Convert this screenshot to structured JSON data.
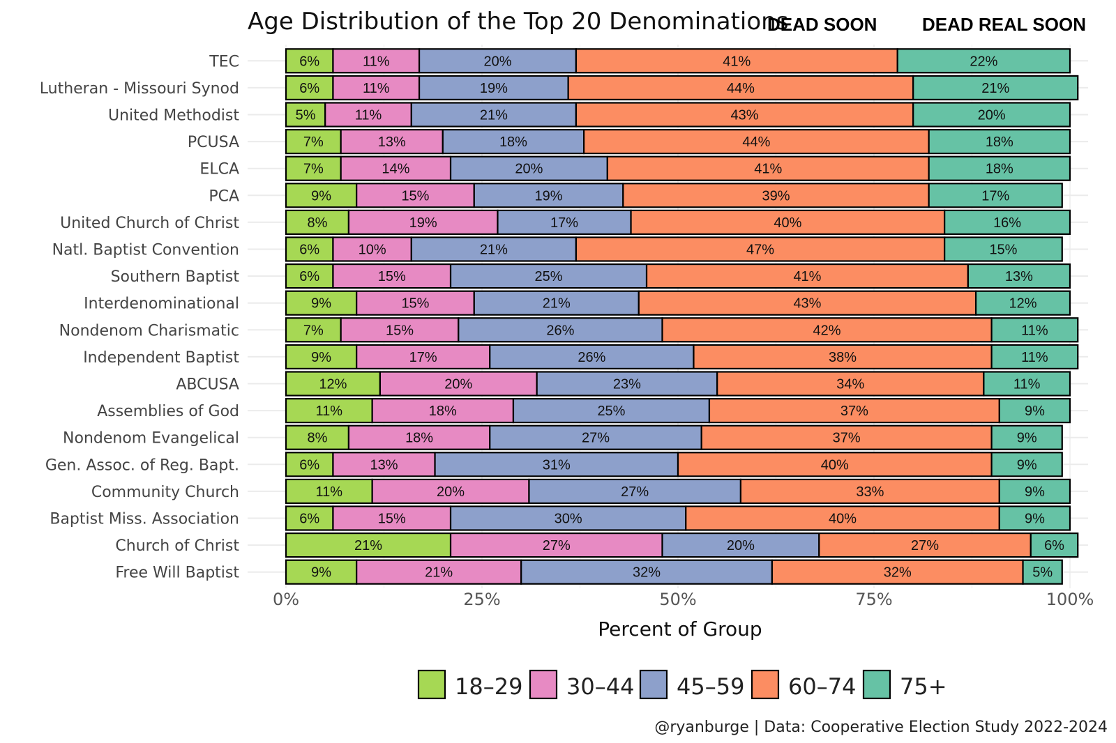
{
  "chart_data": {
    "type": "bar",
    "orientation": "horizontal",
    "stacked": true,
    "title": "Age Distribution of the Top 20 Denominations",
    "annotations": [
      "DEAD SOON",
      "DEAD REAL SOON"
    ],
    "xlabel": "Percent of Group",
    "ylabel": "",
    "xlim": [
      0,
      100
    ],
    "xticks": [
      "0%",
      "25%",
      "50%",
      "75%",
      "100%"
    ],
    "grid": true,
    "legend_position": "bottom",
    "caption": "@ryanburge | Data: Cooperative Election Study 2022-2024",
    "categories": [
      "TEC",
      "Lutheran - Missouri Synod",
      "United Methodist",
      "PCUSA",
      "ELCA",
      "PCA",
      "United Church of Christ",
      "Natl. Baptist Convention",
      "Southern Baptist",
      "Interdenominational",
      "Nondenom Charismatic",
      "Independent Baptist",
      "ABCUSA",
      "Assemblies of God",
      "Nondenom Evangelical",
      "Gen. Assoc. of Reg. Bapt.",
      "Community Church",
      "Baptist Miss. Association",
      "Church of Christ",
      "Free Will Baptist"
    ],
    "series": [
      {
        "name": "18–29",
        "color": "#a6d854",
        "values": [
          6,
          6,
          5,
          7,
          7,
          9,
          8,
          6,
          6,
          9,
          7,
          9,
          12,
          11,
          8,
          6,
          11,
          6,
          21,
          9
        ]
      },
      {
        "name": "30–44",
        "color": "#e78ac3",
        "values": [
          11,
          11,
          11,
          13,
          14,
          15,
          19,
          10,
          15,
          15,
          15,
          17,
          20,
          18,
          18,
          13,
          20,
          15,
          27,
          21
        ]
      },
      {
        "name": "45–59",
        "color": "#8da0cb",
        "values": [
          20,
          19,
          21,
          18,
          20,
          19,
          17,
          21,
          25,
          21,
          26,
          26,
          23,
          25,
          27,
          31,
          27,
          30,
          20,
          32
        ]
      },
      {
        "name": "60–74",
        "color": "#fc8d62",
        "values": [
          41,
          44,
          43,
          44,
          41,
          39,
          40,
          47,
          41,
          43,
          42,
          38,
          34,
          37,
          37,
          40,
          33,
          40,
          27,
          32
        ]
      },
      {
        "name": "75+",
        "color": "#66c2a5",
        "values": [
          22,
          21,
          20,
          18,
          18,
          17,
          16,
          15,
          13,
          12,
          11,
          11,
          11,
          9,
          9,
          9,
          9,
          9,
          6,
          5
        ]
      }
    ]
  }
}
